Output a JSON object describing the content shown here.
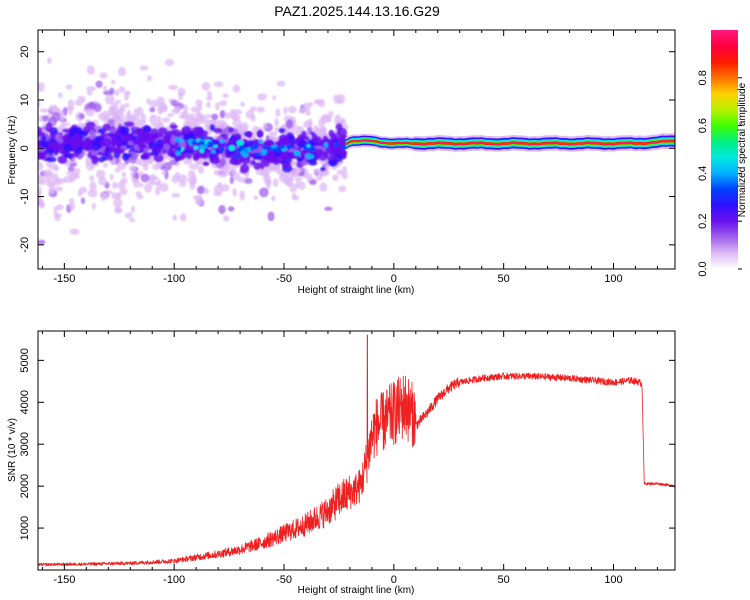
{
  "title": "PAZ1.2025.144.13.16.G29",
  "chart_data": [
    {
      "type": "heatmap",
      "xlabel": "Height of straight line (km)",
      "ylabel": "Frequency (Hz)",
      "xlim": [
        -162,
        128
      ],
      "ylim": [
        -25,
        24.5
      ],
      "x_ticks": [
        -150,
        -100,
        -50,
        0,
        50,
        100
      ],
      "y_ticks": [
        -20,
        -10,
        0,
        10,
        20
      ],
      "colorbar": {
        "label": "Normalized spectral amplitude",
        "range": [
          0,
          1
        ],
        "ticks": [
          0.0,
          0.2,
          0.4,
          0.6,
          0.8
        ],
        "colors": [
          "#ffffff",
          "#ddb8f5",
          "#a060ee",
          "#6a10ee",
          "#3010ff",
          "#0040ff",
          "#00b0ff",
          "#00e8e0",
          "#00f080",
          "#40ff00",
          "#b8f000",
          "#ffd000",
          "#ff7000",
          "#ff1800",
          "#ff0040",
          "#ff1a80"
        ]
      },
      "series": [
        {
          "name": "",
          "x": [
            -162,
            -140,
            -120,
            -100,
            -80,
            -60,
            -40,
            -25,
            -20,
            -10,
            0,
            10,
            20,
            30,
            50,
            70,
            90,
            110,
            128
          ],
          "y": [
            1.0,
            1.0,
            1.0,
            1.0,
            0.5,
            -0.5,
            0.0,
            0.0,
            1.5,
            1.5,
            1.0,
            1.0,
            1.0,
            1.0,
            1.0,
            1.0,
            1.0,
            1.0,
            1.5
          ]
        }
      ],
      "regions": [
        {
          "x_range": [
            -162,
            -22
          ],
          "frequency_spread_hz": [
            -25,
            24
          ],
          "dominant_amplitude": 0.3,
          "description": "diffuse scattered spectrum around 0 Hz"
        },
        {
          "x_range": [
            -22,
            128
          ],
          "frequency_spread_hz": [
            -0.5,
            2.5
          ],
          "dominant_amplitude": 1.0,
          "description": "narrow coherent line near 1 Hz"
        }
      ]
    },
    {
      "type": "line",
      "xlabel": "Height of straight line (km)",
      "ylabel": "SNR (10 * v/v)",
      "xlim": [
        -162,
        128
      ],
      "ylim": [
        0,
        5700
      ],
      "x_ticks": [
        -150,
        -100,
        -50,
        0,
        50,
        100
      ],
      "y_ticks": [
        1000,
        2000,
        3000,
        4000,
        5000
      ],
      "color": "#ee2020",
      "series": [
        {
          "name": "",
          "x": [
            -162,
            -140,
            -120,
            -100,
            -90,
            -80,
            -70,
            -60,
            -50,
            -40,
            -30,
            -25,
            -20,
            -15,
            -12,
            -10,
            -8,
            -5,
            0,
            3,
            5,
            8,
            10,
            15,
            20,
            25,
            30,
            40,
            50,
            60,
            70,
            80,
            90,
            100,
            108,
            112,
            113,
            114,
            120,
            128
          ],
          "y": [
            120,
            130,
            150,
            200,
            280,
            350,
            450,
            600,
            800,
            1000,
            1300,
            1550,
            1700,
            1900,
            2500,
            3000,
            3200,
            3300,
            3500,
            3600,
            3700,
            3500,
            3400,
            3700,
            4050,
            4300,
            4450,
            4550,
            4600,
            4600,
            4580,
            4550,
            4500,
            4450,
            4500,
            4450,
            4400,
            2050,
            2050,
            2000
          ],
          "peak": {
            "x": -12,
            "y": 5600
          }
        }
      ]
    }
  ]
}
